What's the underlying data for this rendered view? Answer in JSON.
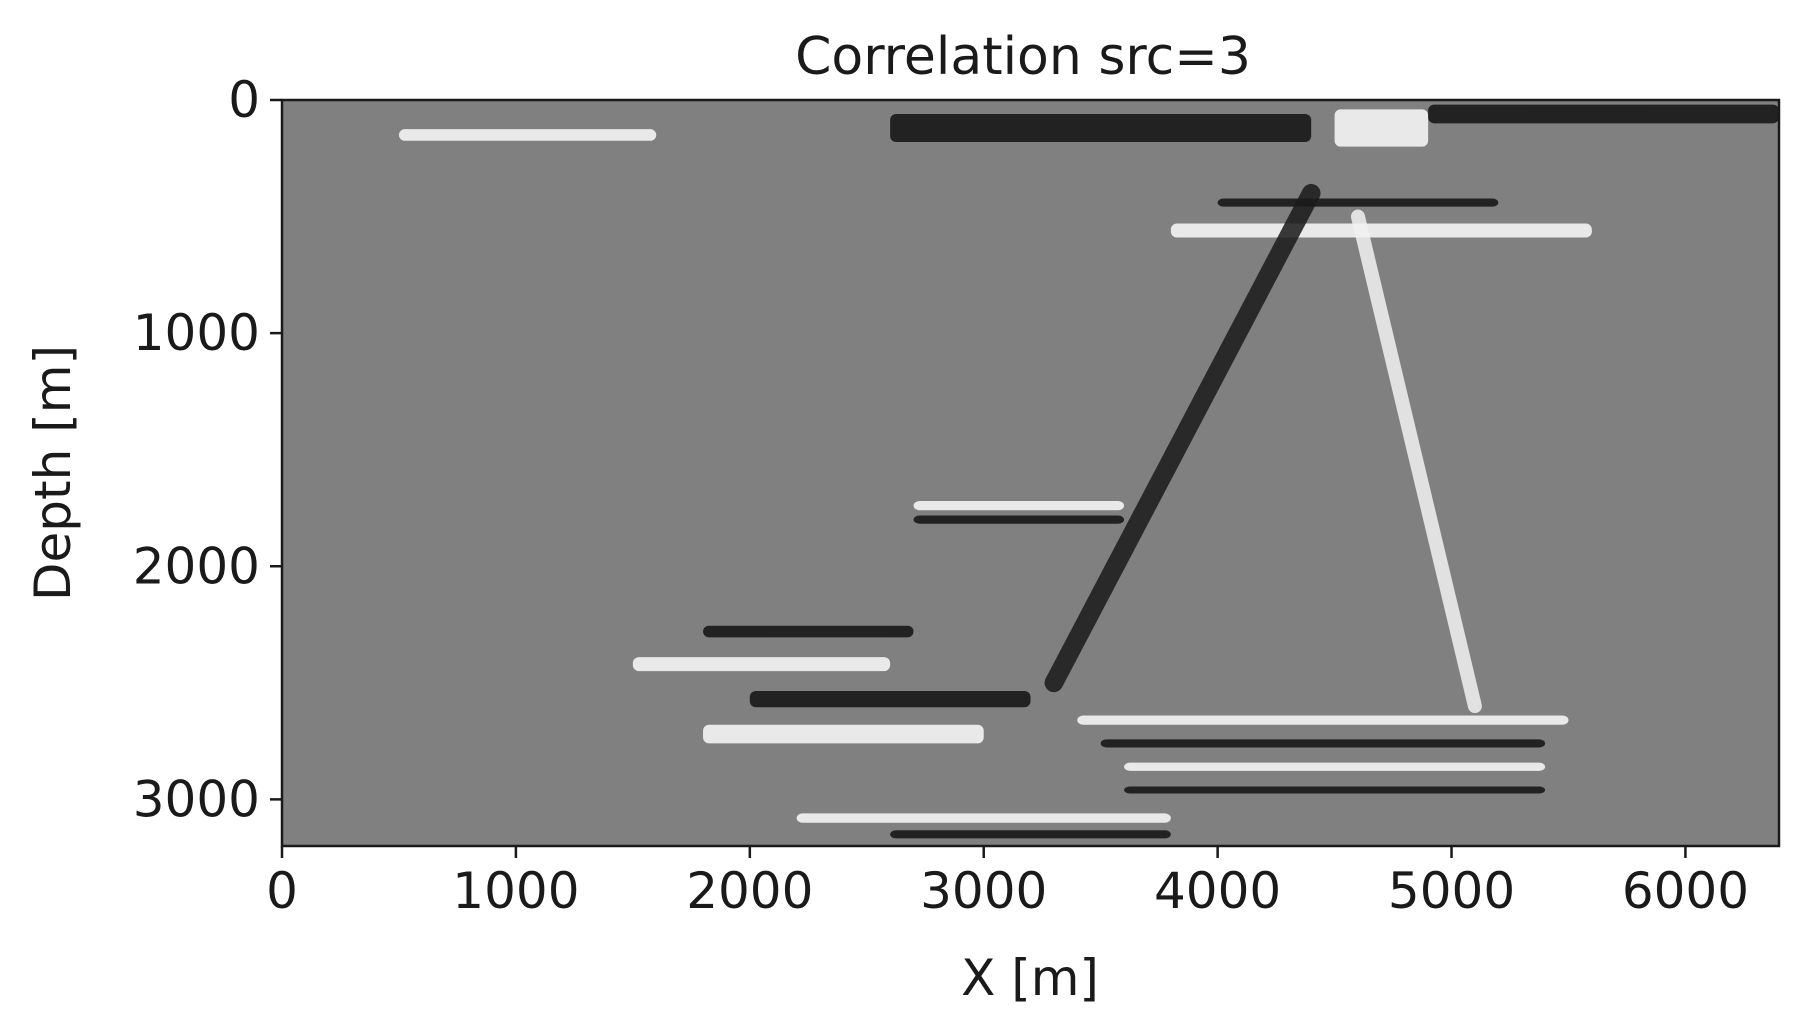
{
  "chart_data": {
    "type": "heatmap",
    "title": "Correlation src=3",
    "xlabel": "X [m]",
    "ylabel": "Depth [m]",
    "xlim": [
      0,
      6400
    ],
    "ylim": [
      3200,
      0
    ],
    "xticks": [
      0,
      1000,
      2000,
      3000,
      4000,
      5000,
      6000
    ],
    "xtick_labels": [
      "0",
      "1000",
      "2000",
      "3000",
      "4000",
      "5000",
      "6000"
    ],
    "yticks": [
      0,
      1000,
      2000,
      3000
    ],
    "ytick_labels": [
      "0",
      "1000",
      "2000",
      "3000"
    ],
    "colormap": "gray",
    "background_value_color": "#808080",
    "grid": false,
    "legend": "none",
    "features": [
      {
        "kind": "band",
        "value": -1,
        "x0": 2600,
        "x1": 4400,
        "z": 120,
        "thickness": 120
      },
      {
        "kind": "band",
        "value": 1,
        "x0": 4500,
        "x1": 4900,
        "z": 120,
        "thickness": 160
      },
      {
        "kind": "band",
        "value": -1,
        "x0": 4900,
        "x1": 6400,
        "z": 60,
        "thickness": 80
      },
      {
        "kind": "band",
        "value": 1,
        "x0": 500,
        "x1": 1600,
        "z": 150,
        "thickness": 50
      },
      {
        "kind": "band",
        "value": 1,
        "x0": 3800,
        "x1": 5600,
        "z": 560,
        "thickness": 60
      },
      {
        "kind": "band",
        "value": -1,
        "x0": 4000,
        "x1": 5200,
        "z": 440,
        "thickness": 35
      },
      {
        "kind": "band",
        "value": 1,
        "x0": 2700,
        "x1": 3600,
        "z": 1740,
        "thickness": 40
      },
      {
        "kind": "band",
        "value": -1,
        "x0": 2700,
        "x1": 3600,
        "z": 1800,
        "thickness": 35
      },
      {
        "kind": "band",
        "value": -1,
        "x0": 1800,
        "x1": 2700,
        "z": 2280,
        "thickness": 50
      },
      {
        "kind": "band",
        "value": 1,
        "x0": 1500,
        "x1": 2600,
        "z": 2420,
        "thickness": 60
      },
      {
        "kind": "band",
        "value": -1,
        "x0": 2000,
        "x1": 3200,
        "z": 2570,
        "thickness": 70
      },
      {
        "kind": "band",
        "value": 1,
        "x0": 1800,
        "x1": 3000,
        "z": 2720,
        "thickness": 80
      },
      {
        "kind": "band",
        "value": 1,
        "x0": 3400,
        "x1": 5500,
        "z": 2660,
        "thickness": 40
      },
      {
        "kind": "band",
        "value": -1,
        "x0": 3500,
        "x1": 5400,
        "z": 2760,
        "thickness": 35
      },
      {
        "kind": "band",
        "value": 1,
        "x0": 3600,
        "x1": 5400,
        "z": 2860,
        "thickness": 35
      },
      {
        "kind": "band",
        "value": -1,
        "x0": 3600,
        "x1": 5400,
        "z": 2960,
        "thickness": 30
      },
      {
        "kind": "band",
        "value": 1,
        "x0": 2200,
        "x1": 3800,
        "z": 3080,
        "thickness": 40
      },
      {
        "kind": "band",
        "value": -1,
        "x0": 2600,
        "x1": 3800,
        "z": 3150,
        "thickness": 35
      },
      {
        "kind": "dip",
        "value": -1,
        "x0": 4400,
        "z0": 400,
        "x1": 3300,
        "z1": 2500,
        "thickness": 80
      },
      {
        "kind": "dip",
        "value": 1,
        "x0": 4600,
        "z0": 500,
        "x1": 5100,
        "z1": 2600,
        "thickness": 60
      }
    ]
  }
}
